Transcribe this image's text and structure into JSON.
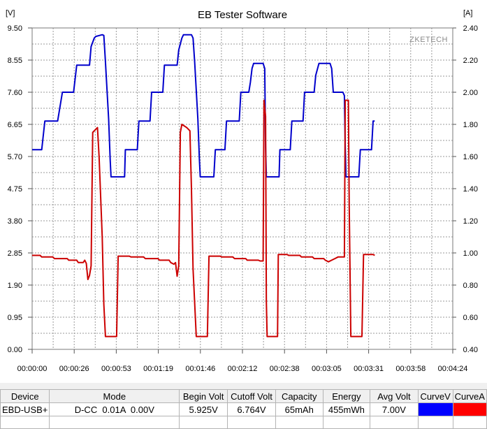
{
  "window": {
    "title": "EB Tester Software"
  },
  "chart_data": {
    "type": "line",
    "title": "EB Tester Software",
    "watermark": "ZKETECH",
    "left_axis": {
      "unit": "[V]",
      "min": 0,
      "max": 9.5,
      "ticks": [
        "0.00",
        "0.95",
        "1.90",
        "2.85",
        "3.80",
        "4.75",
        "5.70",
        "6.65",
        "7.60",
        "8.55",
        "9.50"
      ]
    },
    "right_axis": {
      "unit": "[A]",
      "min": 0.4,
      "max": 2.4,
      "ticks": [
        "0.40",
        "0.60",
        "0.80",
        "1.00",
        "1.20",
        "1.40",
        "1.60",
        "1.80",
        "2.00",
        "2.20",
        "2.40"
      ]
    },
    "x_axis": {
      "min_s": 0,
      "max_s": 264,
      "ticks": [
        "00:00:00",
        "00:00:26",
        "00:00:53",
        "00:01:19",
        "00:01:46",
        "00:02:12",
        "00:02:38",
        "00:03:05",
        "00:03:31",
        "00:03:58",
        "00:04:24"
      ]
    },
    "grid": true,
    "series": [
      {
        "name": "CurveV",
        "axis": "left",
        "color": "#0000cc",
        "points": [
          [
            0,
            5.9
          ],
          [
            6,
            5.9
          ],
          [
            8,
            6.75
          ],
          [
            16,
            6.75
          ],
          [
            19,
            7.6
          ],
          [
            26,
            7.6
          ],
          [
            28,
            8.4
          ],
          [
            36,
            8.4
          ],
          [
            37,
            8.95
          ],
          [
            39,
            9.2
          ],
          [
            40,
            9.25
          ],
          [
            44,
            9.3
          ],
          [
            45,
            9.28
          ],
          [
            46,
            8.5
          ],
          [
            48,
            6.8
          ],
          [
            49,
            5.6
          ],
          [
            49.5,
            5.1
          ],
          [
            58,
            5.1
          ],
          [
            58.5,
            5.9
          ],
          [
            66,
            5.9
          ],
          [
            67,
            6.75
          ],
          [
            74,
            6.75
          ],
          [
            75,
            7.6
          ],
          [
            82,
            7.6
          ],
          [
            83,
            8.4
          ],
          [
            91,
            8.4
          ],
          [
            92,
            8.85
          ],
          [
            94,
            9.2
          ],
          [
            95,
            9.3
          ],
          [
            100,
            9.3
          ],
          [
            101,
            9.2
          ],
          [
            102,
            8.5
          ],
          [
            104,
            6.8
          ],
          [
            105,
            5.6
          ],
          [
            105.5,
            5.1
          ],
          [
            114,
            5.1
          ],
          [
            115,
            5.9
          ],
          [
            121,
            5.9
          ],
          [
            122,
            6.75
          ],
          [
            130,
            6.75
          ],
          [
            131,
            7.6
          ],
          [
            136,
            7.6
          ],
          [
            137,
            7.9
          ],
          [
            138,
            8.3
          ],
          [
            139,
            8.45
          ],
          [
            145,
            8.45
          ],
          [
            146,
            8.3
          ],
          [
            146.5,
            6.0
          ],
          [
            147,
            5.1
          ],
          [
            155,
            5.1
          ],
          [
            155.5,
            5.9
          ],
          [
            162,
            5.9
          ],
          [
            163,
            6.75
          ],
          [
            170,
            6.75
          ],
          [
            171,
            7.6
          ],
          [
            177,
            7.6
          ],
          [
            178,
            8.1
          ],
          [
            180,
            8.45
          ],
          [
            187,
            8.45
          ],
          [
            188,
            8.3
          ],
          [
            189,
            7.6
          ],
          [
            195,
            7.6
          ],
          [
            196,
            7.5
          ],
          [
            196.5,
            6.0
          ],
          [
            197,
            5.1
          ],
          [
            205,
            5.1
          ],
          [
            206,
            5.9
          ],
          [
            213,
            5.9
          ],
          [
            214,
            6.75
          ],
          [
            215,
            6.75
          ]
        ]
      },
      {
        "name": "CurveA",
        "axis": "right",
        "color": "#cc0000",
        "points": [
          [
            0,
            0.985
          ],
          [
            5,
            0.985
          ],
          [
            6,
            0.975
          ],
          [
            13,
            0.975
          ],
          [
            14,
            0.965
          ],
          [
            22,
            0.965
          ],
          [
            23,
            0.955
          ],
          [
            28,
            0.955
          ],
          [
            29,
            0.94
          ],
          [
            32,
            0.94
          ],
          [
            33,
            0.955
          ],
          [
            34,
            0.935
          ],
          [
            35,
            0.835
          ],
          [
            36,
            0.86
          ],
          [
            37,
            0.92
          ],
          [
            38,
            1.75
          ],
          [
            40,
            1.77
          ],
          [
            41,
            1.78
          ],
          [
            42,
            1.6
          ],
          [
            44,
            1.1
          ],
          [
            45,
            0.68
          ],
          [
            46,
            0.48
          ],
          [
            53,
            0.48
          ],
          [
            54,
            0.98
          ],
          [
            61,
            0.98
          ],
          [
            62,
            0.975
          ],
          [
            70,
            0.975
          ],
          [
            71,
            0.965
          ],
          [
            79,
            0.965
          ],
          [
            80,
            0.955
          ],
          [
            86,
            0.955
          ],
          [
            87,
            0.94
          ],
          [
            89,
            0.93
          ],
          [
            90,
            0.94
          ],
          [
            91,
            0.855
          ],
          [
            92,
            0.92
          ],
          [
            93,
            1.75
          ],
          [
            94,
            1.8
          ],
          [
            97,
            1.78
          ],
          [
            99,
            1.76
          ],
          [
            100,
            1.4
          ],
          [
            101,
            0.9
          ],
          [
            103,
            0.48
          ],
          [
            110,
            0.48
          ],
          [
            111,
            0.98
          ],
          [
            118,
            0.98
          ],
          [
            119,
            0.975
          ],
          [
            126,
            0.975
          ],
          [
            127,
            0.965
          ],
          [
            134,
            0.965
          ],
          [
            135,
            0.955
          ],
          [
            142,
            0.955
          ],
          [
            143,
            0.95
          ],
          [
            145,
            0.95
          ],
          [
            145.5,
            1.95
          ],
          [
            146.5,
            1.85
          ],
          [
            147,
            0.7
          ],
          [
            147.5,
            0.48
          ],
          [
            154,
            0.48
          ],
          [
            154.5,
            0.99
          ],
          [
            160,
            0.99
          ],
          [
            161,
            0.985
          ],
          [
            168,
            0.985
          ],
          [
            169,
            0.975
          ],
          [
            176,
            0.975
          ],
          [
            177,
            0.965
          ],
          [
            183,
            0.965
          ],
          [
            184,
            0.955
          ],
          [
            186,
            0.945
          ],
          [
            188,
            0.955
          ],
          [
            190,
            0.965
          ],
          [
            192,
            0.975
          ],
          [
            196,
            0.975
          ],
          [
            196.5,
            1.95
          ],
          [
            198.5,
            1.95
          ],
          [
            199,
            1.3
          ],
          [
            200,
            0.48
          ],
          [
            207,
            0.48
          ],
          [
            208,
            0.99
          ],
          [
            214,
            0.99
          ],
          [
            215,
            0.985
          ]
        ]
      }
    ]
  },
  "table": {
    "columns": [
      "Device",
      "Mode",
      "Begin Volt",
      "Cutoff Volt",
      "Capacity",
      "Energy",
      "Avg Volt",
      "CurveV",
      "CurveA"
    ],
    "widths": [
      68,
      188,
      69,
      69,
      68,
      68,
      69,
      50,
      48
    ],
    "row": {
      "device": "EBD-USB+",
      "mode": "D-CC  0.01A  0.00V",
      "begin_volt": "5.925V",
      "cutoff_volt": "6.764V",
      "capacity": "65mAh",
      "energy": "455mWh",
      "avg_volt": "7.00V",
      "curve_v_color": "#0000ff",
      "curve_a_color": "#ff0000"
    }
  }
}
